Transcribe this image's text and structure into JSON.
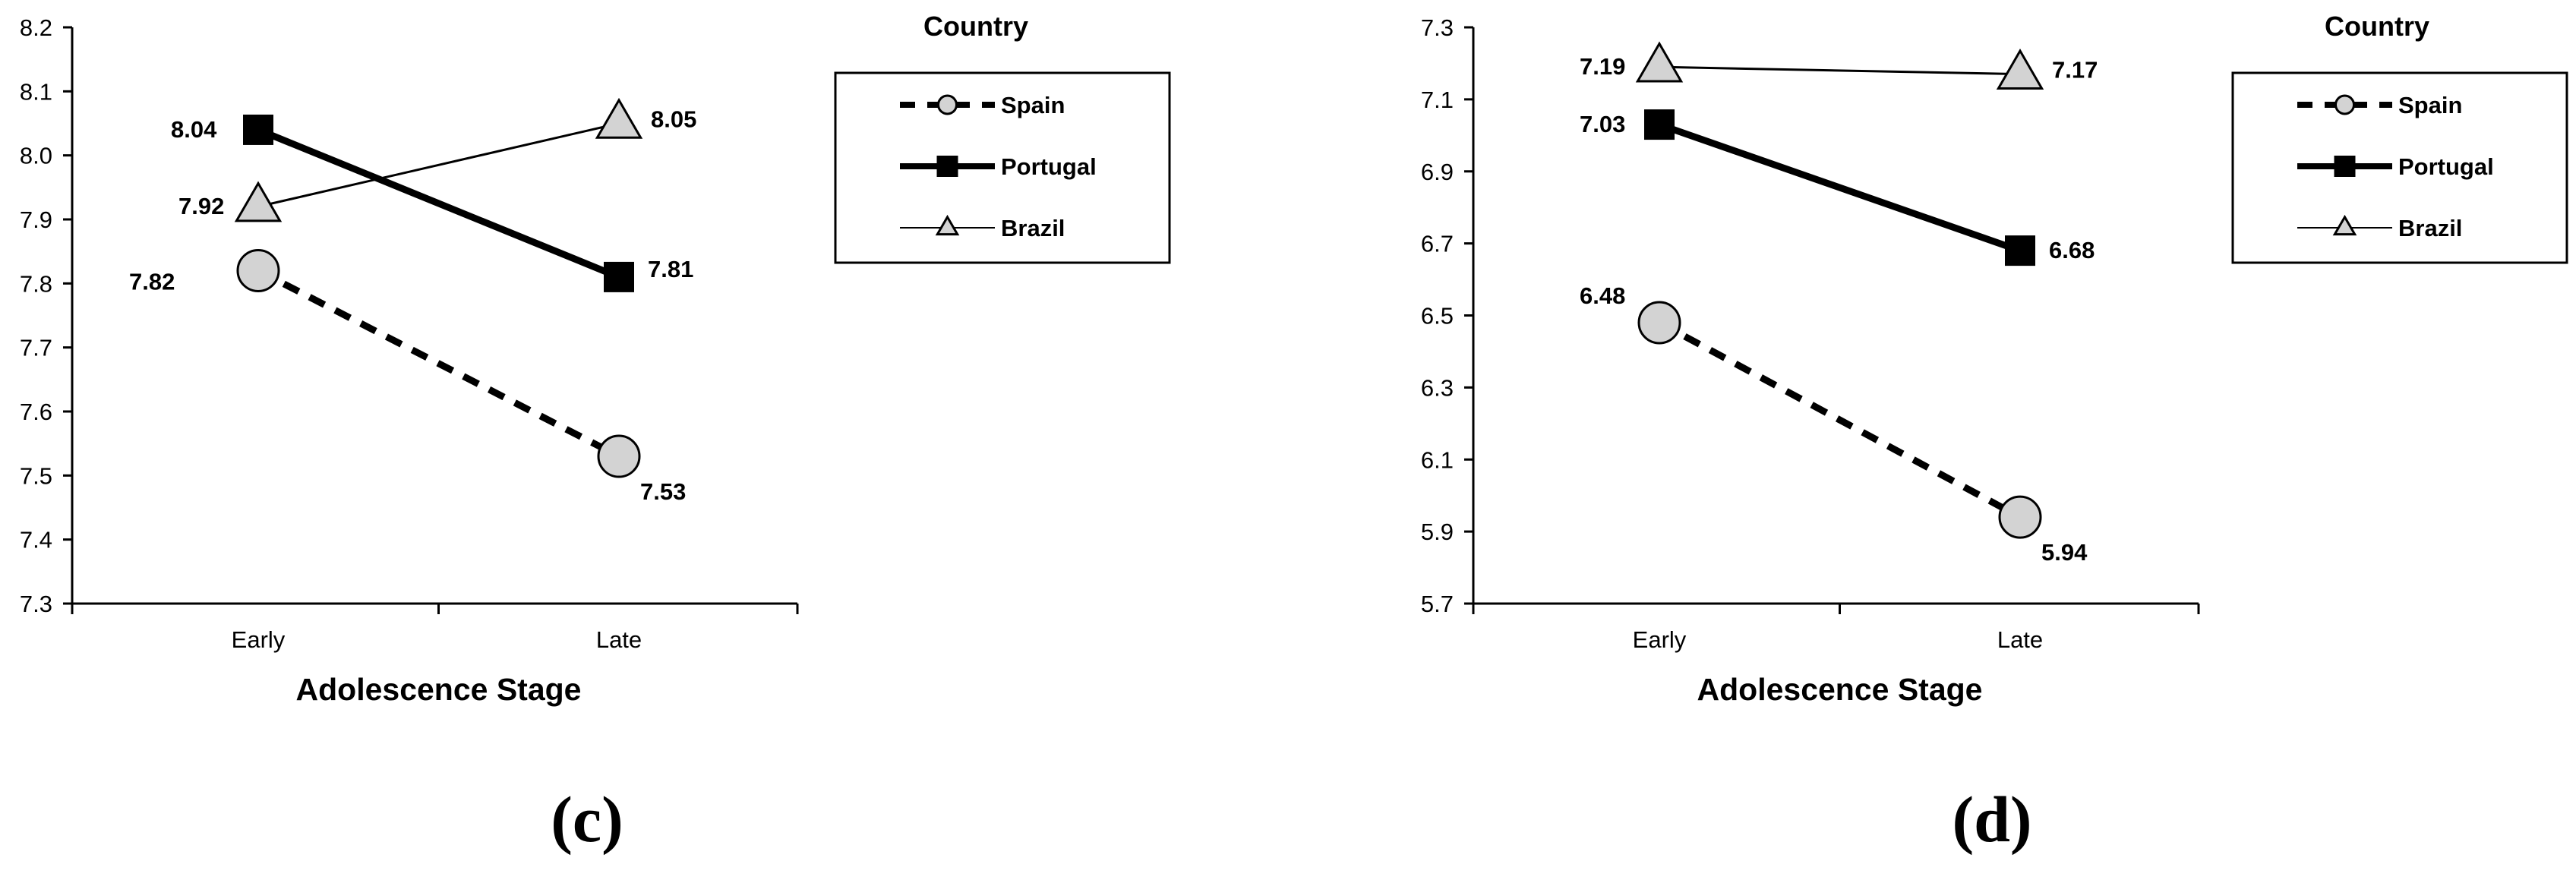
{
  "chart_data": [
    {
      "type": "line",
      "panel_label": "(c)",
      "categories": [
        "Early",
        "Late"
      ],
      "xlabel": "Adolescence Stage",
      "ylabel": "",
      "ylim": [
        7.3,
        8.2
      ],
      "yticks": [
        "7.3",
        "7.4",
        "7.5",
        "7.6",
        "7.7",
        "7.8",
        "7.9",
        "8.0",
        "8.1",
        "8.2"
      ],
      "grid": false,
      "legend": {
        "title": "Country",
        "placement": "right"
      },
      "series": [
        {
          "name": "Spain",
          "values": [
            7.82,
            7.53
          ],
          "labels": [
            "7.82",
            "7.53"
          ],
          "style": "dashed",
          "marker": "circle",
          "color": "#000000",
          "fill": "#d3d3d3"
        },
        {
          "name": "Portugal",
          "values": [
            8.04,
            7.81
          ],
          "labels": [
            "8.04",
            "7.81"
          ],
          "style": "thick",
          "marker": "square",
          "color": "#000000",
          "fill": "#000000"
        },
        {
          "name": "Brazil",
          "values": [
            7.92,
            8.05
          ],
          "labels": [
            "7.92",
            "8.05"
          ],
          "style": "thin",
          "marker": "triangle",
          "color": "#000000",
          "fill": "#d3d3d3"
        }
      ]
    },
    {
      "type": "line",
      "panel_label": "(d)",
      "categories": [
        "Early",
        "Late"
      ],
      "xlabel": "Adolescence Stage",
      "ylabel": "",
      "ylim": [
        5.7,
        7.3
      ],
      "yticks": [
        "5.7",
        "5.9",
        "6.1",
        "6.3",
        "6.5",
        "6.7",
        "6.9",
        "7.1",
        "7.3"
      ],
      "grid": false,
      "legend": {
        "title": "Country",
        "placement": "right"
      },
      "series": [
        {
          "name": "Spain",
          "values": [
            6.48,
            5.94
          ],
          "labels": [
            "6.48",
            "5.94"
          ],
          "style": "dashed",
          "marker": "circle",
          "color": "#000000",
          "fill": "#d3d3d3"
        },
        {
          "name": "Portugal",
          "values": [
            7.03,
            6.68
          ],
          "labels": [
            "7.03",
            "6.68"
          ],
          "style": "thick",
          "marker": "square",
          "color": "#000000",
          "fill": "#000000"
        },
        {
          "name": "Brazil",
          "values": [
            7.19,
            7.17
          ],
          "labels": [
            "7.19",
            "7.17"
          ],
          "style": "thin",
          "marker": "triangle",
          "color": "#000000",
          "fill": "#d3d3d3"
        }
      ]
    }
  ]
}
